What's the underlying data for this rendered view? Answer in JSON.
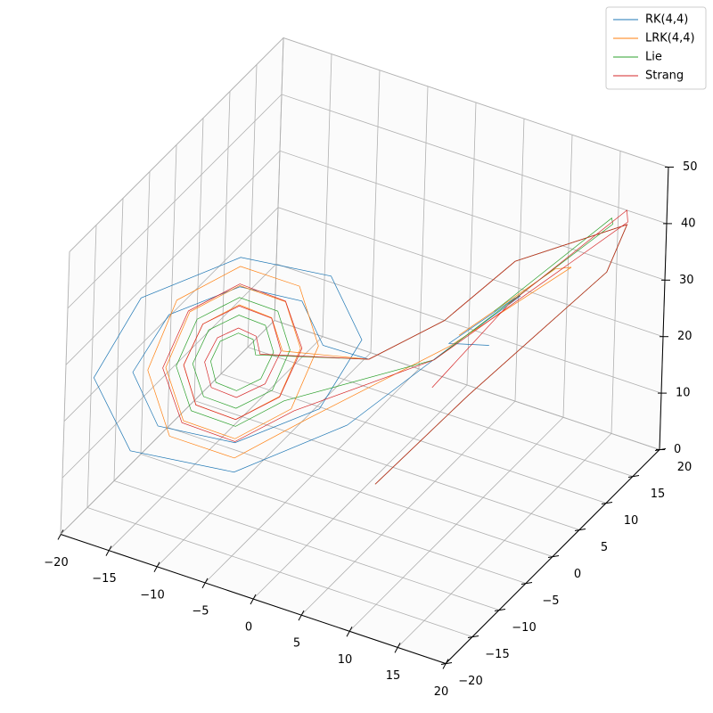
{
  "chart_data": {
    "type": "line3d",
    "xlim": [
      -20,
      20
    ],
    "ylim": [
      -20,
      20
    ],
    "zlim": [
      0,
      50
    ],
    "xticks": [
      {
        "value": -20,
        "label": "−20"
      },
      {
        "value": -15,
        "label": "−15"
      },
      {
        "value": -10,
        "label": "−10"
      },
      {
        "value": -5,
        "label": "−5"
      },
      0,
      5,
      10,
      15,
      20
    ],
    "yticks": [
      {
        "value": -20,
        "label": "−20"
      },
      {
        "value": -15,
        "label": "−15"
      },
      {
        "value": -10,
        "label": "−10"
      },
      {
        "value": -5,
        "label": "−5"
      },
      0,
      5,
      10,
      15,
      20
    ],
    "zticks": [
      0,
      10,
      20,
      30,
      40,
      50
    ],
    "grid": true,
    "legend": "upper right",
    "series": [
      {
        "name": "RK(4,4)",
        "color": "#1f77b4",
        "x": [
          1,
          6,
          14,
          17,
          12,
          6,
          1,
          -2.8,
          -4.3,
          -8.5,
          -13.2,
          -15.5,
          -13.7,
          -8.5,
          -2.9,
          -0.2,
          -2.4,
          -8.5,
          -15.1,
          -18.1,
          -15.5,
          -8.5,
          -1,
          5,
          10,
          11,
          6,
          8
        ],
        "y": [
          1,
          9,
          20,
          18,
          6,
          4,
          -1,
          -2.8,
          -4.3,
          -8.5,
          -13.2,
          -15.5,
          -13.7,
          -8.5,
          -2.9,
          -0.2,
          -2.4,
          -8.5,
          -15.1,
          -18.1,
          -15.5,
          -8.5,
          -1,
          6,
          11,
          8,
          5,
          9
        ],
        "z": [
          1,
          12,
          28,
          40,
          42,
          30,
          25,
          27,
          35.4,
          39.5,
          36.3,
          27,
          16.8,
          11.9,
          15.8,
          27,
          39.1,
          44.7,
          40,
          27,
          13.1,
          6.7,
          12.2,
          22,
          30,
          33,
          25,
          22
        ]
      },
      {
        "name": "LRK(4,4)",
        "color": "#ff7f0e",
        "x": [
          1,
          6,
          14,
          17,
          12,
          6,
          1,
          -5.5,
          -6.3,
          -8.5,
          -10.9,
          -12.1,
          -11.2,
          -8.5,
          -5.6,
          -4.3,
          -5.4,
          -8.5,
          -11.8,
          -13.3,
          -12,
          -8.5,
          -4.8,
          -3.1,
          -4.5,
          -8.5,
          -12.7,
          -14.5,
          -12.9,
          -8.5,
          -3.9,
          5,
          13,
          14,
          7
        ],
        "y": [
          1,
          9,
          20,
          18,
          6,
          4,
          -1,
          -5.5,
          -6.3,
          -8.5,
          -10.9,
          -12.1,
          -11.2,
          -8.5,
          -5.6,
          -4.3,
          -5.4,
          -8.5,
          -11.8,
          -13.3,
          -12,
          -8.5,
          -4.8,
          -3.1,
          -4.5,
          -8.5,
          -12.7,
          -14.5,
          -12.9,
          -8.5,
          -3.9,
          7,
          15,
          10,
          5
        ],
        "z": [
          1,
          12,
          28,
          40,
          42,
          30,
          25,
          27,
          33.2,
          36.3,
          33.8,
          27,
          19.6,
          16,
          19,
          27,
          35.7,
          39.7,
          36.3,
          27,
          17.1,
          12.6,
          16.5,
          27,
          38.1,
          43.1,
          38.7,
          27,
          14.7,
          9.2,
          14.1,
          22,
          33,
          38,
          27
        ]
      },
      {
        "name": "Lie",
        "color": "#2ca02c",
        "x": [
          1,
          6,
          14,
          17,
          12,
          6,
          1,
          -7.3,
          -7.5,
          -8.5,
          -9.7,
          -10.3,
          -9.9,
          -8.5,
          -6.9,
          -6.1,
          -6.7,
          -8.5,
          -10.5,
          -11.5,
          -10.7,
          -8.5,
          -6.1,
          -5,
          -5.9,
          -8.5,
          -11.3,
          -12.6,
          -11.5,
          -8.5,
          -5.3,
          4,
          15,
          17,
          10
        ],
        "y": [
          1,
          9,
          20,
          18,
          6,
          4,
          -1,
          -7.3,
          -7.5,
          -8.5,
          -9.7,
          -10.3,
          -9.9,
          -8.5,
          -6.9,
          -6.1,
          -6.7,
          -8.5,
          -10.5,
          -11.5,
          -10.7,
          -8.5,
          -6.1,
          -5,
          -5.9,
          -8.5,
          -11.3,
          -12.6,
          -11.5,
          -8.5,
          -5.3,
          6,
          19,
          15,
          6
        ],
        "z": [
          1,
          12,
          28,
          40,
          42,
          30,
          25,
          27,
          29.8,
          31.3,
          30.3,
          27,
          23.1,
          21.1,
          22.6,
          27,
          32,
          34.5,
          32.6,
          27,
          20.9,
          18,
          20.3,
          27,
          34.2,
          37.6,
          34.8,
          27,
          18.7,
          14.8,
          18.1,
          20,
          38,
          44,
          32
        ]
      },
      {
        "name": "Strang",
        "color": "#d62728",
        "x": [
          1,
          6,
          14,
          17,
          12,
          6,
          1,
          -7,
          -7.3,
          -8.5,
          -9.9,
          -10.7,
          -10.2,
          -8.5,
          -6.6,
          -5.6,
          -6.3,
          -8.5,
          -10.9,
          -12.1,
          -11.2,
          -8.5,
          -5.6,
          -4.2,
          -5.4,
          -8.5,
          -11.9,
          -13.5,
          -12.1,
          -8.5,
          -4.6,
          4,
          16,
          18,
          11,
          6
        ],
        "y": [
          1,
          9,
          20,
          18,
          6,
          4,
          -1,
          -7,
          -7.3,
          -8.5,
          -9.9,
          -10.7,
          -10.2,
          -8.5,
          -6.6,
          -5.6,
          -6.3,
          -8.5,
          -10.9,
          -12.1,
          -11.2,
          -8.5,
          -5.6,
          -4.2,
          -5.4,
          -8.5,
          -11.9,
          -13.5,
          -12.1,
          -8.5,
          -4.6,
          6,
          20,
          16,
          7,
          2
        ],
        "z": [
          1,
          12,
          28,
          40,
          42,
          30,
          25,
          27,
          30.3,
          32.2,
          31,
          27,
          22.3,
          19.9,
          21.6,
          27,
          33.1,
          36.1,
          33.8,
          27,
          19.6,
          16,
          18.9,
          27,
          35.8,
          40,
          36.5,
          27,
          16.8,
          12.1,
          16.1,
          20,
          38,
          45,
          33,
          20
        ]
      }
    ]
  }
}
